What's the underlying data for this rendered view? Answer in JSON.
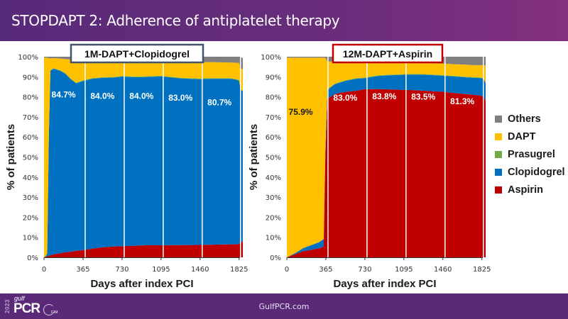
{
  "header": {
    "title": "STOPDAPT 2: Adherence of antiplatelet therapy"
  },
  "footer": {
    "url": "GulfPCR.com",
    "logo_year": "2023",
    "logo_gulf": "gulf",
    "logo_pcr": "PCR",
    "logo_gim": "GIM"
  },
  "colors": {
    "Others": "#7f7f7f",
    "DAPT": "#ffc000",
    "Prasugrel": "#70ad47",
    "Clopidogrel": "#0070c0",
    "Aspirin": "#c00000"
  },
  "legend": [
    {
      "name": "Others",
      "color": "#7f7f7f"
    },
    {
      "name": "DAPT",
      "color": "#ffc000"
    },
    {
      "name": "Prasugrel",
      "color": "#70ad47"
    },
    {
      "name": "Clopidogrel",
      "color": "#0070c0"
    },
    {
      "name": "Aspirin",
      "color": "#c00000"
    }
  ],
  "chart_data": [
    {
      "type": "area",
      "stacked": true,
      "title": "1M-DAPT+Clopidogrel",
      "title_border_color": "#44546a",
      "xlabel": "Days after index PCI",
      "ylabel": "% of patients",
      "xlim": [
        0,
        1860
      ],
      "ylim": [
        0,
        100
      ],
      "xticks": [
        0,
        365,
        730,
        1095,
        1460,
        1825
      ],
      "yticks": [
        "0%",
        "10%",
        "20%",
        "30%",
        "40%",
        "50%",
        "60%",
        "70%",
        "80%",
        "90%",
        "100%"
      ],
      "vlines": [
        365,
        730,
        1095,
        1460,
        1825
      ],
      "x": [
        0,
        20,
        30,
        45,
        60,
        90,
        150,
        200,
        250,
        300,
        365,
        450,
        550,
        650,
        730,
        850,
        950,
        1095,
        1200,
        1300,
        1460,
        1550,
        1650,
        1750,
        1800,
        1825,
        1840,
        1860
      ],
      "series": [
        {
          "name": "Aspirin",
          "values": [
            0,
            0.3,
            0.5,
            0.8,
            1,
            1.5,
            2,
            2.5,
            2.8,
            3.2,
            3.6,
            4.3,
            5,
            5.4,
            5.6,
            5.8,
            6,
            6,
            6.1,
            6.1,
            6.2,
            6.3,
            6.4,
            6.5,
            6.5,
            6.6,
            7.5,
            7.8
          ]
        },
        {
          "name": "Clopidogrel",
          "values": [
            0,
            0.5,
            1.5,
            60,
            92,
            92.5,
            91,
            89,
            86,
            83.5,
            84.3,
            84.7,
            84.5,
            84.2,
            84.5,
            84,
            83.9,
            84.2,
            83.5,
            83,
            82.6,
            82.7,
            82.6,
            82.5,
            82,
            81.5,
            76,
            75
          ]
        },
        {
          "name": "Prasugrel",
          "values": [
            0,
            0,
            0,
            0,
            0.3,
            0.3,
            0.3,
            0.3,
            0.3,
            0.3,
            0.3,
            0.3,
            0.3,
            0.3,
            0.3,
            0.3,
            0.3,
            0.3,
            0.3,
            0.3,
            0.3,
            0.3,
            0.3,
            0.3,
            0.3,
            0.3,
            0.3,
            0.3
          ]
        },
        {
          "name": "DAPT",
          "values": [
            99.5,
            98.7,
            97.5,
            38.5,
            5.9,
            5,
            5.8,
            7,
            9.5,
            11.5,
            10,
            8.8,
            8.2,
            8,
            7.8,
            7.9,
            7.9,
            7.3,
            7.7,
            8,
            8.2,
            8,
            7.9,
            7.8,
            8.2,
            8.5,
            10.5,
            10.5
          ]
        },
        {
          "name": "Others",
          "values": [
            0.5,
            0.5,
            0.5,
            0.7,
            0.8,
            0.7,
            0.9,
            1.2,
            1.4,
            1.7,
            1.5,
            1.9,
            2,
            2.1,
            1.8,
            2,
            1.9,
            2.2,
            2.4,
            2.6,
            2.7,
            2.7,
            2.8,
            2.9,
            3,
            3.1,
            5.7,
            5.6
          ]
        }
      ],
      "annotations": [
        {
          "x": 183,
          "y": 84.7,
          "text": "84.7%"
        },
        {
          "x": 547,
          "y": 84.0,
          "text": "84.0%"
        },
        {
          "x": 912,
          "y": 84.0,
          "text": "84.0%"
        },
        {
          "x": 1277,
          "y": 83.0,
          "text": "83.0%"
        },
        {
          "x": 1642,
          "y": 80.7,
          "text": "80.7%"
        }
      ],
      "annotation_color": "#ffffff"
    },
    {
      "type": "area",
      "stacked": true,
      "title": "12M-DAPT+Aspirin",
      "title_border_color": "#c00000",
      "xlabel": "Days after index PCI",
      "ylabel": "% of patients",
      "xlim": [
        0,
        1860
      ],
      "ylim": [
        0,
        100
      ],
      "xticks": [
        0,
        365,
        730,
        1095,
        1460,
        1825
      ],
      "yticks": [
        "0%",
        "10%",
        "20%",
        "30%",
        "40%",
        "50%",
        "60%",
        "70%",
        "80%",
        "90%",
        "100%"
      ],
      "vlines": [
        365,
        730,
        1095,
        1460,
        1825
      ],
      "x": [
        0,
        50,
        100,
        150,
        200,
        250,
        300,
        330,
        345,
        360,
        380,
        450,
        550,
        650,
        730,
        850,
        950,
        1095,
        1200,
        1300,
        1460,
        1550,
        1650,
        1750,
        1825,
        1845,
        1860
      ],
      "series": [
        {
          "name": "Aspirin",
          "values": [
            0,
            1,
            2,
            3,
            3.5,
            4,
            4.5,
            5,
            5.5,
            50,
            79,
            81.5,
            82.5,
            83,
            83.8,
            83.9,
            83.7,
            83.5,
            83.3,
            83,
            82.5,
            82,
            81.5,
            81,
            80.5,
            80,
            78
          ]
        },
        {
          "name": "Clopidogrel",
          "values": [
            0,
            0.3,
            0.8,
            1.5,
            2,
            2.5,
            3,
            3.5,
            3.7,
            4,
            4.5,
            4.8,
            5.5,
            6,
            5.5,
            6.5,
            7,
            7.5,
            7.8,
            8,
            8,
            8.2,
            8.3,
            8.5,
            8.8,
            8.8,
            8.8
          ]
        },
        {
          "name": "Prasugrel",
          "values": [
            0,
            0,
            0,
            0,
            0,
            0,
            0,
            0,
            0,
            0,
            0.3,
            0.3,
            0.3,
            0.3,
            0.3,
            0.3,
            0.3,
            0.3,
            0.3,
            0.3,
            0.3,
            0.3,
            0.3,
            0.3,
            0.3,
            0.3,
            0.3
          ]
        },
        {
          "name": "DAPT",
          "values": [
            99.5,
            98.2,
            96.7,
            95,
            94,
            93,
            92,
            91,
            90.3,
            45.5,
            13.8,
            11,
            9,
            8,
            8,
            6.5,
            5.9,
            5.5,
            5.5,
            5.5,
            5.8,
            5.8,
            6,
            6,
            6.2,
            6.6,
            8.5
          ]
        },
        {
          "name": "Others",
          "values": [
            0.5,
            0.5,
            0.5,
            0.5,
            0.5,
            0.5,
            0.5,
            0.5,
            0.5,
            0.5,
            2.4,
            2.4,
            2.7,
            2.7,
            2.4,
            2.8,
            3.1,
            3.2,
            3.1,
            3.2,
            3.4,
            3.7,
            3.9,
            4.2,
            4.2,
            4.3,
            4.4
          ]
        }
      ],
      "annotations": [
        {
          "x": 130,
          "y": 75.9,
          "text": "75.9%",
          "color": "#1a1a1a"
        },
        {
          "x": 547,
          "y": 83.0,
          "text": "83.0%"
        },
        {
          "x": 912,
          "y": 83.8,
          "text": "83.8%"
        },
        {
          "x": 1277,
          "y": 83.5,
          "text": "83.5%"
        },
        {
          "x": 1642,
          "y": 81.3,
          "text": "81.3%"
        }
      ],
      "annotation_color": "#ffffff"
    }
  ]
}
